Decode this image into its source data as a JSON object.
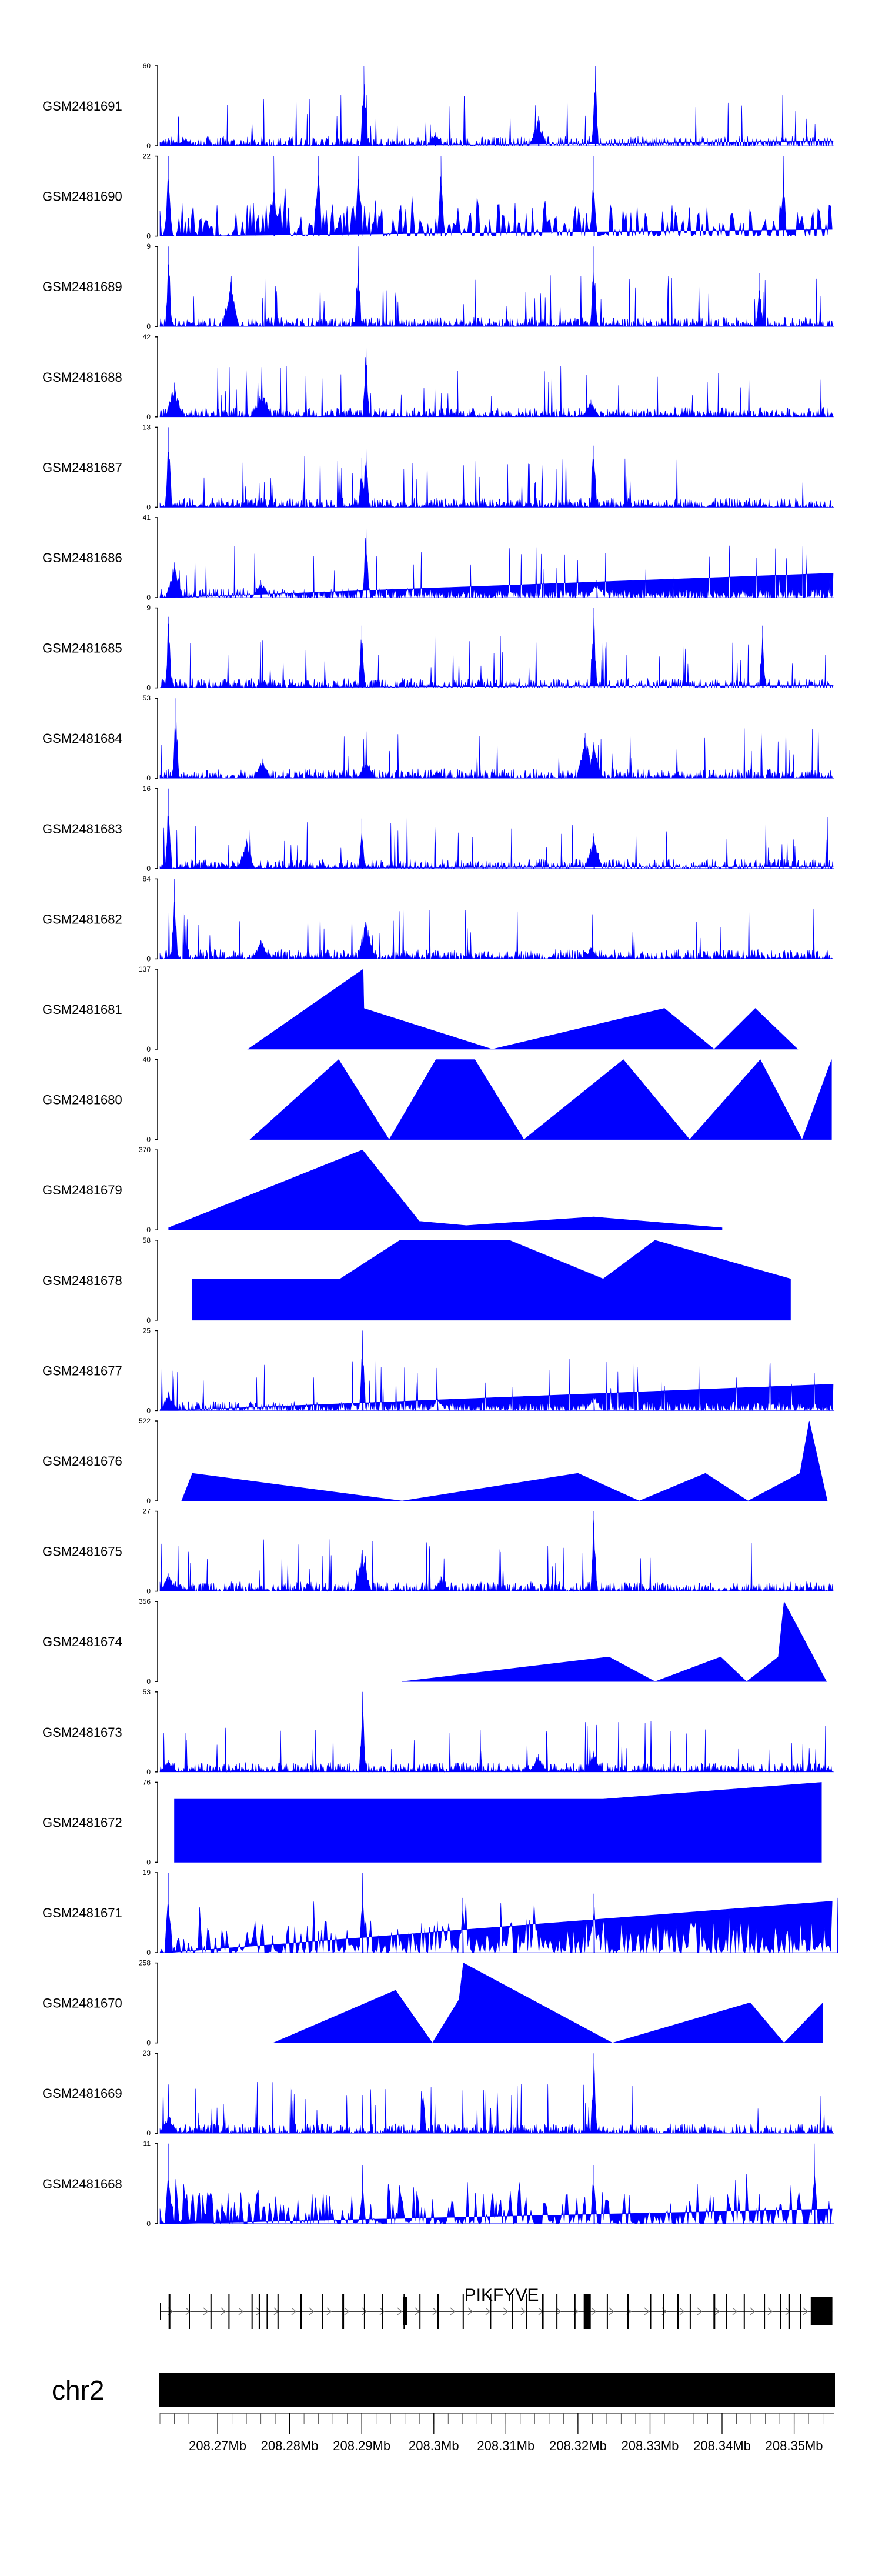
{
  "chart_data": {
    "type": "area",
    "title": "",
    "xlabel": "",
    "ylabel": "",
    "xlim": [
      208.262,
      208.3555
    ],
    "track_color": "#0000ff",
    "tracks": [
      {
        "name": "GSM2481691",
        "ymax": 60,
        "style": "dense",
        "peaks": [
          [
            208.2903,
            60
          ],
          [
            208.3145,
            22
          ],
          [
            208.3224,
            60
          ],
          [
            208.3002,
            10
          ],
          [
            208.2655,
            6
          ]
        ]
      },
      {
        "name": "GSM2481690",
        "ymax": 22,
        "style": "spiky",
        "peaks": [
          [
            208.2632,
            22
          ],
          [
            208.2778,
            22
          ],
          [
            208.284,
            22
          ],
          [
            208.2895,
            22
          ],
          [
            208.301,
            22
          ],
          [
            208.3222,
            22
          ],
          [
            208.3485,
            22
          ]
        ]
      },
      {
        "name": "GSM2481689",
        "ymax": 9,
        "style": "dense",
        "peaks": [
          [
            208.2632,
            9
          ],
          [
            208.2895,
            9
          ],
          [
            208.3222,
            9
          ],
          [
            208.2718,
            5
          ],
          [
            208.3452,
            6
          ]
        ]
      },
      {
        "name": "GSM2481688",
        "ymax": 42,
        "style": "dense",
        "peaks": [
          [
            208.264,
            18
          ],
          [
            208.2758,
            11
          ],
          [
            208.2763,
            14
          ],
          [
            208.2906,
            42
          ],
          [
            208.3218,
            9
          ]
        ]
      },
      {
        "name": "GSM2481687",
        "ymax": 13,
        "style": "dense",
        "peaks": [
          [
            208.2632,
            13
          ],
          [
            208.29,
            8
          ],
          [
            208.2906,
            11
          ],
          [
            208.3222,
            10
          ]
        ]
      },
      {
        "name": "GSM2481686",
        "ymax": 41,
        "style": "dense",
        "peaks": [
          [
            208.264,
            18
          ],
          [
            208.276,
            9
          ],
          [
            208.2906,
            41
          ],
          [
            208.3226,
            9
          ]
        ]
      },
      {
        "name": "GSM2481685",
        "ymax": 9,
        "style": "dense",
        "peaks": [
          [
            208.2632,
            8
          ],
          [
            208.29,
            7
          ],
          [
            208.3222,
            9
          ],
          [
            208.3456,
            7
          ]
        ]
      },
      {
        "name": "GSM2481684",
        "ymax": 53,
        "style": "dense",
        "peaks": [
          [
            208.2642,
            53
          ],
          [
            208.2762,
            13
          ],
          [
            208.2906,
            14
          ],
          [
            208.321,
            30
          ],
          [
            208.3222,
            24
          ],
          [
            208.3005,
            5
          ]
        ]
      },
      {
        "name": "GSM2481683",
        "ymax": 16,
        "style": "dense",
        "peaks": [
          [
            208.2632,
            16
          ],
          [
            208.274,
            6
          ],
          [
            208.29,
            10
          ],
          [
            208.3222,
            7
          ]
        ]
      },
      {
        "name": "GSM2481682",
        "ymax": 84,
        "style": "dense",
        "peaks": [
          [
            208.264,
            84
          ],
          [
            208.276,
            20
          ],
          [
            208.2906,
            44
          ],
          [
            208.3218,
            12
          ]
        ]
      },
      {
        "name": "GSM2481681",
        "ymax": 137,
        "style": "sparse",
        "peaks": [
          [
            208.2742,
            0
          ],
          [
            208.2902,
            137
          ],
          [
            208.2903,
            70
          ],
          [
            208.3081,
            0
          ],
          [
            208.332,
            70
          ],
          [
            208.3389,
            0
          ],
          [
            208.3446,
            70
          ],
          [
            208.3505,
            0
          ]
        ]
      },
      {
        "name": "GSM2481680",
        "ymax": 40,
        "style": "sparse",
        "peaks": [
          [
            208.2745,
            0
          ],
          [
            208.2868,
            40
          ],
          [
            208.2938,
            0
          ],
          [
            208.3003,
            40
          ],
          [
            208.3057,
            40
          ],
          [
            208.3125,
            0
          ],
          [
            208.3263,
            40
          ],
          [
            208.3355,
            0
          ],
          [
            208.3453,
            40
          ],
          [
            208.3511,
            0
          ],
          [
            208.3552,
            40
          ]
        ]
      },
      {
        "name": "GSM2481679",
        "ymax": 370,
        "style": "sparse",
        "peaks": [
          [
            208.2632,
            10
          ],
          [
            208.2901,
            370
          ],
          [
            208.298,
            40
          ],
          [
            208.3045,
            20
          ],
          [
            208.3222,
            60
          ],
          [
            208.34,
            10
          ]
        ]
      },
      {
        "name": "GSM2481678",
        "ymax": 58,
        "style": "sparse",
        "peaks": [
          [
            208.2665,
            30
          ],
          [
            208.2793,
            30
          ],
          [
            208.287,
            30
          ],
          [
            208.2953,
            58
          ],
          [
            208.3105,
            58
          ],
          [
            208.3235,
            30
          ],
          [
            208.3307,
            58
          ],
          [
            208.3495,
            30
          ]
        ]
      },
      {
        "name": "GSM2481677",
        "ymax": 25,
        "style": "dense",
        "peaks": [
          [
            208.2632,
            6
          ],
          [
            208.2901,
            25
          ],
          [
            208.3222,
            5
          ],
          [
            208.3005,
            4
          ]
        ]
      },
      {
        "name": "GSM2481676",
        "ymax": 522,
        "style": "sparse",
        "peaks": [
          [
            208.265,
            0
          ],
          [
            208.2665,
            180
          ],
          [
            208.2956,
            0
          ],
          [
            208.32,
            180
          ],
          [
            208.3285,
            0
          ],
          [
            208.3377,
            180
          ],
          [
            208.3436,
            0
          ],
          [
            208.3508,
            180
          ],
          [
            208.3521,
            522
          ],
          [
            208.3546,
            0
          ]
        ]
      },
      {
        "name": "GSM2481675",
        "ymax": 27,
        "style": "dense",
        "peaks": [
          [
            208.2632,
            6
          ],
          [
            208.2901,
            14
          ],
          [
            208.3222,
            27
          ],
          [
            208.301,
            5
          ]
        ]
      },
      {
        "name": "GSM2481674",
        "ymax": 356,
        "style": "sparse",
        "peaks": [
          [
            208.2956,
            0
          ],
          [
            208.3243,
            110
          ],
          [
            208.3307,
            0
          ],
          [
            208.3398,
            110
          ],
          [
            208.3434,
            0
          ],
          [
            208.3478,
            110
          ],
          [
            208.3486,
            356
          ],
          [
            208.3545,
            0
          ]
        ]
      },
      {
        "name": "GSM2481673",
        "ymax": 53,
        "style": "dense",
        "peaks": [
          [
            208.2632,
            8
          ],
          [
            208.2901,
            53
          ],
          [
            208.3145,
            12
          ],
          [
            208.3222,
            14
          ]
        ]
      },
      {
        "name": "GSM2481672",
        "ymax": 76,
        "style": "sparse",
        "peaks": [
          [
            208.264,
            60
          ],
          [
            208.2775,
            60
          ],
          [
            208.2955,
            60
          ],
          [
            208.3055,
            60
          ],
          [
            208.3235,
            60
          ],
          [
            208.3538,
            76
          ]
        ]
      },
      {
        "name": "GSM2481671",
        "ymax": 19,
        "style": "spiky",
        "peaks": [
          [
            208.2632,
            19
          ],
          [
            208.2901,
            19
          ],
          [
            208.304,
            13
          ],
          [
            208.3222,
            14
          ],
          [
            208.356,
            13
          ]
        ]
      },
      {
        "name": "GSM2481670",
        "ymax": 258,
        "style": "sparse",
        "peaks": [
          [
            208.2777,
            0
          ],
          [
            208.2947,
            170
          ],
          [
            208.2998,
            0
          ],
          [
            208.3035,
            140
          ],
          [
            208.3041,
            258
          ],
          [
            208.3248,
            0
          ],
          [
            208.3439,
            130
          ],
          [
            208.3486,
            0
          ],
          [
            208.354,
            130
          ]
        ]
      },
      {
        "name": "GSM2481669",
        "ymax": 23,
        "style": "dense",
        "peaks": [
          [
            208.2632,
            6
          ],
          [
            208.2985,
            14
          ],
          [
            208.3222,
            23
          ]
        ]
      },
      {
        "name": "GSM2481668",
        "ymax": 11,
        "style": "spiky",
        "peaks": [
          [
            208.2632,
            11
          ],
          [
            208.2901,
            8
          ],
          [
            208.3222,
            8
          ],
          [
            208.3528,
            11
          ]
        ]
      }
    ],
    "gene": {
      "name": "PIKFYVE",
      "chrom": "chr2",
      "start": 208.262,
      "end": 208.3553,
      "strand": "+",
      "exons": [
        208.2632,
        208.266,
        208.269,
        208.2715,
        208.2747,
        208.2757,
        208.2768,
        208.2783,
        208.2815,
        208.2845,
        208.2873,
        208.2903,
        208.2928,
        208.2958,
        208.298,
        208.3005,
        208.304,
        208.3078,
        208.3108,
        208.3128,
        208.315,
        208.317,
        208.3195,
        208.3212,
        208.324,
        208.3268,
        208.33,
        208.3318,
        208.3338,
        208.3355,
        208.3388,
        208.3405,
        208.343,
        208.3458,
        208.348,
        208.3492,
        208.3508
      ],
      "utr_end": [
        208.3523,
        208.3553
      ]
    },
    "axis": {
      "ticks": [
        208.27,
        208.28,
        208.29,
        208.3,
        208.31,
        208.32,
        208.33,
        208.34,
        208.35
      ],
      "tick_labels": [
        "208.27Mb",
        "208.28Mb",
        "208.29Mb",
        "208.3Mb",
        "208.31Mb",
        "208.32Mb",
        "208.33Mb",
        "208.34Mb",
        "208.35Mb"
      ],
      "minor_step": 0.002
    }
  }
}
